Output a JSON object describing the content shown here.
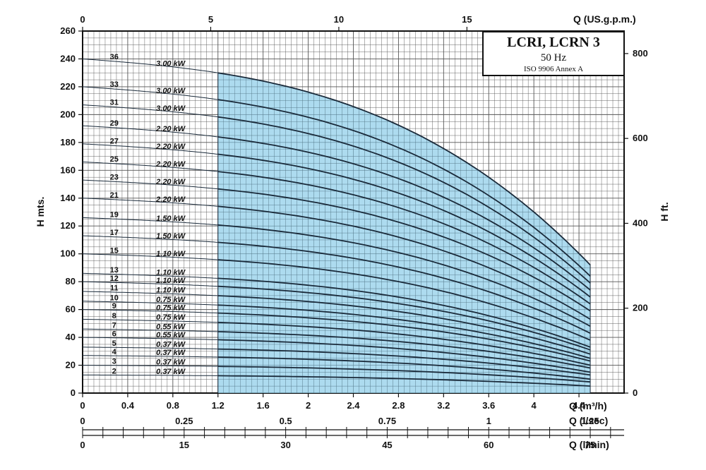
{
  "chart_data": {
    "type": "line",
    "title": "LCRI, LCRN 3",
    "subtitle": "50 Hz",
    "note": "ISO 9906 Annex A",
    "ylabel": "H mts.",
    "y2label": "H ft.",
    "xlabel": "Q (m³/h)",
    "x_top_label": "Q (US.g.p.m.)",
    "x_lsec_label": "Q (l/sec)",
    "x_lmin_label": "Q (l/min)",
    "xlim": [
      0,
      4.8
    ],
    "ylim": [
      0,
      260
    ],
    "x_ticks": [
      "0",
      "0.4",
      "0.8",
      "1.2",
      "1.6",
      "2",
      "2.4",
      "2.8",
      "3.2",
      "3.6",
      "4",
      "4.4"
    ],
    "y_ticks": [
      "0",
      "20",
      "40",
      "60",
      "80",
      "100",
      "120",
      "140",
      "160",
      "180",
      "200",
      "220",
      "240",
      "260"
    ],
    "y2_ticks": [
      {
        "label": "0",
        "ft": 0
      },
      {
        "label": "200",
        "ft": 200
      },
      {
        "label": "400",
        "ft": 400
      },
      {
        "label": "600",
        "ft": 600
      },
      {
        "label": "800",
        "ft": 800
      }
    ],
    "top_ticks": [
      {
        "label": "0",
        "gpm": 0
      },
      {
        "label": "5",
        "gpm": 5
      },
      {
        "label": "10",
        "gpm": 10
      },
      {
        "label": "15",
        "gpm": 15
      }
    ],
    "lsec_ticks": [
      {
        "label": "0",
        "v": 0
      },
      {
        "label": "0.25",
        "v": 0.25
      },
      {
        "label": "0.5",
        "v": 0.5
      },
      {
        "label": "0.75",
        "v": 0.75
      },
      {
        "label": "1",
        "v": 1
      },
      {
        "label": "1.25",
        "v": 1.25
      }
    ],
    "lmin_ticks": [
      {
        "label": "0",
        "v": 0
      },
      {
        "label": "15",
        "v": 15
      },
      {
        "label": "30",
        "v": 30
      },
      {
        "label": "45",
        "v": 45
      },
      {
        "label": "60",
        "v": 60
      },
      {
        "label": "75",
        "v": 75
      }
    ],
    "operating_range": [
      1.2,
      4.5
    ],
    "series": [
      {
        "name": "36",
        "power": "3.00 kW",
        "shutoff": 240,
        "end_head": 92
      },
      {
        "name": "33",
        "power": "3.00 kW",
        "shutoff": 220,
        "end_head": 84
      },
      {
        "name": "31",
        "power": "3.00 kW",
        "shutoff": 207,
        "end_head": 79
      },
      {
        "name": "29",
        "power": "2.20 kW",
        "shutoff": 192,
        "end_head": 74
      },
      {
        "name": "27",
        "power": "2.20 kW",
        "shutoff": 179,
        "end_head": 69
      },
      {
        "name": "25",
        "power": "2.20 kW",
        "shutoff": 166,
        "end_head": 64
      },
      {
        "name": "23",
        "power": "2.20 kW",
        "shutoff": 153,
        "end_head": 59
      },
      {
        "name": "21",
        "power": "2.20 kW",
        "shutoff": 140,
        "end_head": 53
      },
      {
        "name": "19",
        "power": "1.50 kW",
        "shutoff": 126,
        "end_head": 48
      },
      {
        "name": "17",
        "power": "1.50 kW",
        "shutoff": 113,
        "end_head": 43
      },
      {
        "name": "15",
        "power": "1.10 kW",
        "shutoff": 100,
        "end_head": 38
      },
      {
        "name": "13",
        "power": "1.10 kW",
        "shutoff": 86,
        "end_head": 33
      },
      {
        "name": "12",
        "power": "1.10 kW",
        "shutoff": 80,
        "end_head": 31
      },
      {
        "name": "11",
        "power": "1.10 kW",
        "shutoff": 73,
        "end_head": 28
      },
      {
        "name": "10",
        "power": "0.75 kW",
        "shutoff": 66,
        "end_head": 25
      },
      {
        "name": "9",
        "power": "0.75 kW",
        "shutoff": 60,
        "end_head": 23
      },
      {
        "name": "8",
        "power": "0.75 kW",
        "shutoff": 53,
        "end_head": 20
      },
      {
        "name": "7",
        "power": "0.55 kW",
        "shutoff": 46,
        "end_head": 18
      },
      {
        "name": "6",
        "power": "0.55 kW",
        "shutoff": 40,
        "end_head": 15
      },
      {
        "name": "5",
        "power": "0.37 kW",
        "shutoff": 33,
        "end_head": 13
      },
      {
        "name": "4",
        "power": "0.37 kW",
        "shutoff": 27,
        "end_head": 10
      },
      {
        "name": "3",
        "power": "0.37 kW",
        "shutoff": 20,
        "end_head": 8
      },
      {
        "name": "2",
        "power": "0.37 kW",
        "shutoff": 13,
        "end_head": 5
      }
    ]
  },
  "colors": {
    "fill": "#9fd5ec",
    "grid": "#555555",
    "curve": "#1a2a3a"
  }
}
